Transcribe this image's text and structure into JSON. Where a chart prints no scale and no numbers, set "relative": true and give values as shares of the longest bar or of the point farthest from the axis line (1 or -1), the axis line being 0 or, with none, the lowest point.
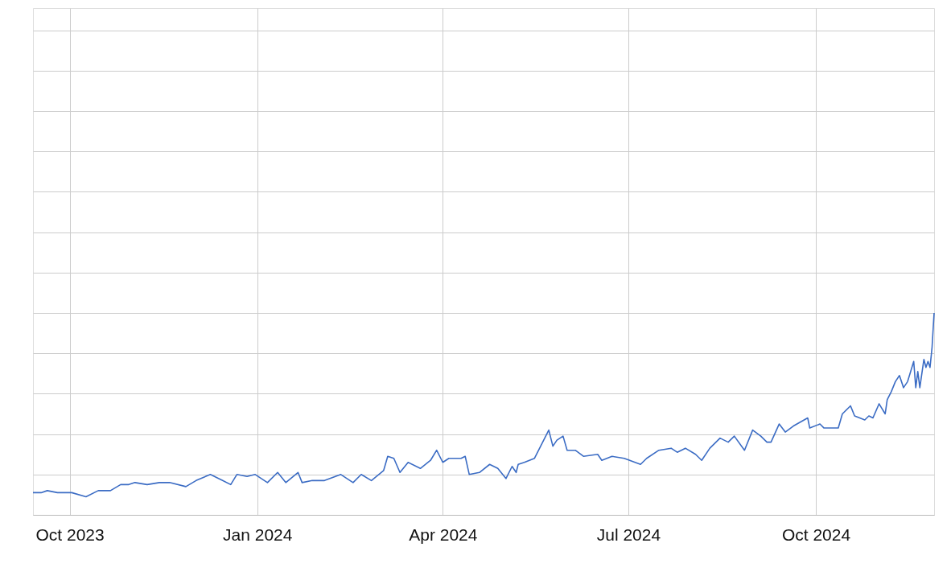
{
  "chart_data": {
    "type": "line",
    "relative": true,
    "color": "#3b6cc4",
    "grid": true,
    "tick_labels": "x",
    "line_style": "solid",
    "marker": "none",
    "xlim": [
      "2023-09-13",
      "2024-11-28"
    ],
    "xticks": [
      {
        "value": "2023-10-01",
        "label": "Oct 2023"
      },
      {
        "value": "2024-01-01",
        "label": "Jan 2024"
      },
      {
        "value": "2024-04-01",
        "label": "Apr 2024"
      },
      {
        "value": "2024-07-01",
        "label": "Jul 2024"
      },
      {
        "value": "2024-10-01",
        "label": "Oct 2024"
      }
    ],
    "x": [
      "2023-09-13",
      "2023-09-17",
      "2023-09-20",
      "2023-09-25",
      "2023-10-02",
      "2023-10-09",
      "2023-10-15",
      "2023-10-21",
      "2023-10-26",
      "2023-10-30",
      "2023-11-02",
      "2023-11-08",
      "2023-11-14",
      "2023-11-19",
      "2023-11-27",
      "2023-12-02",
      "2023-12-09",
      "2023-12-15",
      "2023-12-19",
      "2023-12-22",
      "2023-12-27",
      "2023-12-31",
      "2024-01-06",
      "2024-01-11",
      "2024-01-15",
      "2024-01-21",
      "2024-01-23",
      "2024-01-28",
      "2024-02-03",
      "2024-02-11",
      "2024-02-17",
      "2024-02-21",
      "2024-02-26",
      "2024-03-03",
      "2024-03-05",
      "2024-03-08",
      "2024-03-11",
      "2024-03-15",
      "2024-03-21",
      "2024-03-26",
      "2024-03-29",
      "2024-04-01",
      "2024-04-04",
      "2024-04-10",
      "2024-04-12",
      "2024-04-14",
      "2024-04-19",
      "2024-04-24",
      "2024-04-28",
      "2024-05-02",
      "2024-05-05",
      "2024-05-07",
      "2024-05-08",
      "2024-05-11",
      "2024-05-16",
      "2024-05-19",
      "2024-05-23",
      "2024-05-25",
      "2024-05-27",
      "2024-05-30",
      "2024-06-01",
      "2024-06-05",
      "2024-06-09",
      "2024-06-16",
      "2024-06-18",
      "2024-06-23",
      "2024-06-29",
      "2024-07-07",
      "2024-07-10",
      "2024-07-16",
      "2024-07-22",
      "2024-07-25",
      "2024-07-29",
      "2024-08-03",
      "2024-08-06",
      "2024-08-10",
      "2024-08-15",
      "2024-08-19",
      "2024-08-22",
      "2024-08-27",
      "2024-08-31",
      "2024-09-04",
      "2024-09-07",
      "2024-09-09",
      "2024-09-13",
      "2024-09-16",
      "2024-09-20",
      "2024-09-27",
      "2024-09-28",
      "2024-10-03",
      "2024-10-05",
      "2024-10-12",
      "2024-10-14",
      "2024-10-18",
      "2024-10-20",
      "2024-10-25",
      "2024-10-27",
      "2024-10-29",
      "2024-11-01",
      "2024-11-04",
      "2024-11-05",
      "2024-11-07",
      "2024-11-09",
      "2024-11-11",
      "2024-11-13",
      "2024-11-15",
      "2024-11-18",
      "2024-11-19",
      "2024-11-20",
      "2024-11-21",
      "2024-11-23",
      "2024-11-24",
      "2024-11-25",
      "2024-11-26",
      "2024-11-27",
      "2024-11-28"
    ],
    "values": [
      0.11,
      0.11,
      0.12,
      0.11,
      0.11,
      0.09,
      0.12,
      0.12,
      0.15,
      0.15,
      0.16,
      0.15,
      0.16,
      0.16,
      0.14,
      0.17,
      0.2,
      0.17,
      0.15,
      0.2,
      0.19,
      0.2,
      0.16,
      0.21,
      0.16,
      0.21,
      0.16,
      0.17,
      0.17,
      0.2,
      0.16,
      0.2,
      0.17,
      0.22,
      0.29,
      0.28,
      0.21,
      0.26,
      0.23,
      0.27,
      0.32,
      0.26,
      0.28,
      0.28,
      0.29,
      0.2,
      0.21,
      0.25,
      0.23,
      0.18,
      0.24,
      0.21,
      0.25,
      0.26,
      0.28,
      0.34,
      0.42,
      0.34,
      0.37,
      0.39,
      0.32,
      0.32,
      0.29,
      0.3,
      0.27,
      0.29,
      0.28,
      0.25,
      0.28,
      0.32,
      0.33,
      0.31,
      0.33,
      0.3,
      0.27,
      0.33,
      0.38,
      0.36,
      0.39,
      0.32,
      0.42,
      0.39,
      0.36,
      0.36,
      0.45,
      0.41,
      0.44,
      0.48,
      0.43,
      0.45,
      0.43,
      0.43,
      0.5,
      0.54,
      0.49,
      0.47,
      0.49,
      0.48,
      0.55,
      0.5,
      0.57,
      0.61,
      0.66,
      0.69,
      0.63,
      0.66,
      0.76,
      0.63,
      0.71,
      0.63,
      0.77,
      0.73,
      0.76,
      0.73,
      0.83,
      1.0
    ]
  }
}
